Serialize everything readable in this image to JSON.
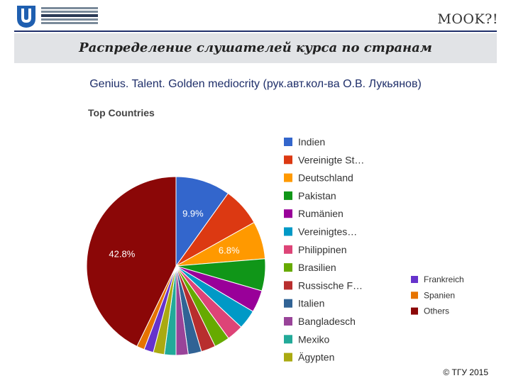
{
  "header": {
    "mook": "MOOK?!",
    "title": "Распределение слушателей курса по странам",
    "subtitle": "Genius. Talent. Golden mediocrity (рук.авт.кол-ва О.В. Лукьянов)"
  },
  "footer": "© ТГУ 2015",
  "chart_data": {
    "type": "pie",
    "title": "Top Countries",
    "legend_position": "right",
    "slices": [
      {
        "label": "Indien",
        "value": 9.9,
        "color": "#3366cc",
        "shown_label": "9.9%"
      },
      {
        "label": "Vereinigte St…",
        "value": 7.0,
        "color": "#dc3912"
      },
      {
        "label": "Deutschland",
        "value": 6.8,
        "color": "#ff9900",
        "shown_label": "6.8%"
      },
      {
        "label": "Pakistan",
        "value": 5.8,
        "color": "#109618"
      },
      {
        "label": "Rumänien",
        "value": 4.0,
        "color": "#990099"
      },
      {
        "label": "Vereinigtes…",
        "value": 3.5,
        "color": "#0099c6"
      },
      {
        "label": "Philippinen",
        "value": 3.0,
        "color": "#dd4477"
      },
      {
        "label": "Brasilien",
        "value": 2.8,
        "color": "#66aa00"
      },
      {
        "label": "Russische F…",
        "value": 2.6,
        "color": "#b82e2e"
      },
      {
        "label": "Italien",
        "value": 2.4,
        "color": "#316395"
      },
      {
        "label": "Bangladesch",
        "value": 2.2,
        "color": "#994499"
      },
      {
        "label": "Mexiko",
        "value": 2.1,
        "color": "#22aa99"
      },
      {
        "label": "Ägypten",
        "value": 2.0,
        "color": "#aaaa11"
      },
      {
        "label": "Frankreich",
        "value": 1.7,
        "color": "#6633cc"
      },
      {
        "label": "Spanien",
        "value": 1.4,
        "color": "#e67300"
      },
      {
        "label": "Others",
        "value": 42.8,
        "color": "#8b0707",
        "shown_label": "42.8%"
      }
    ]
  }
}
